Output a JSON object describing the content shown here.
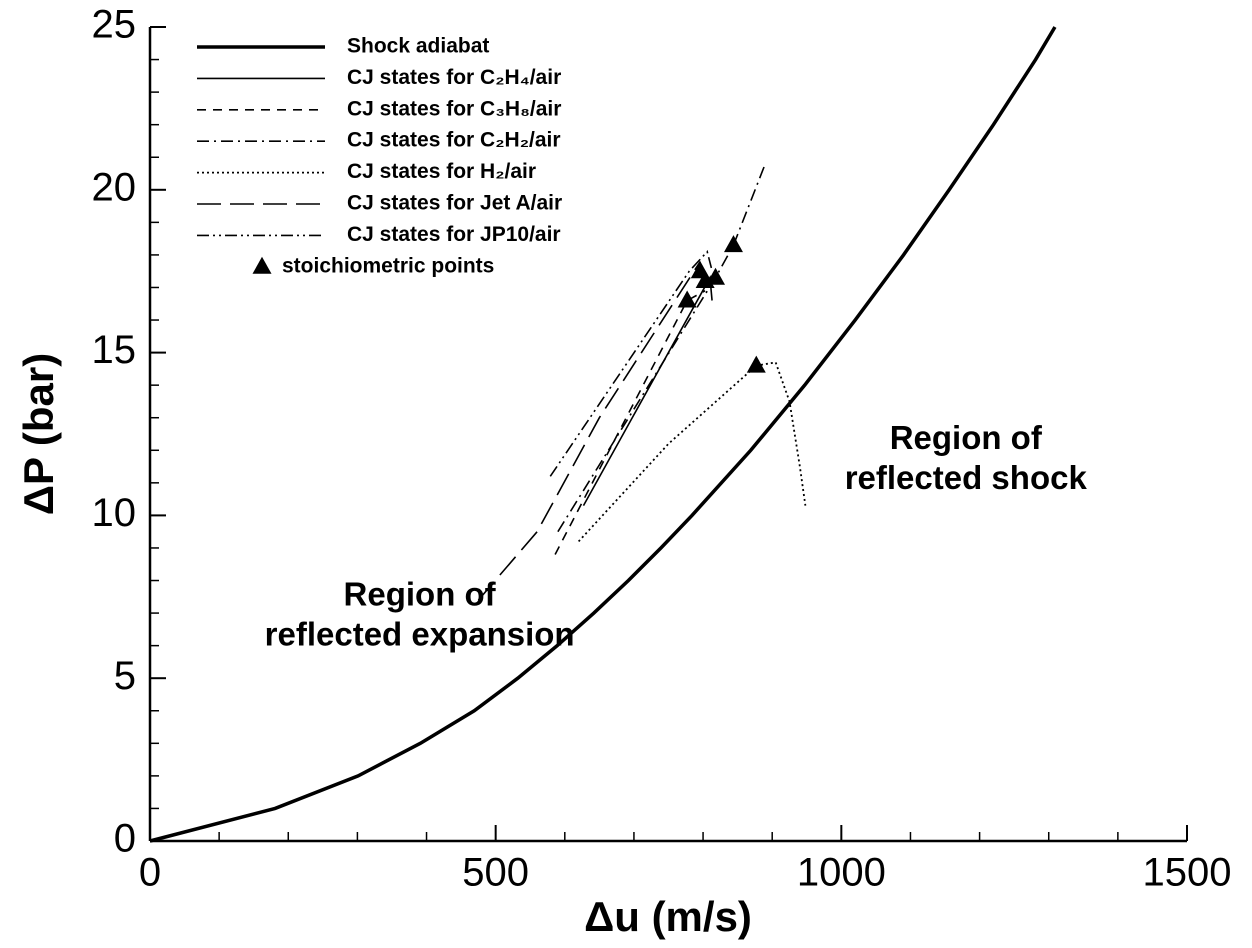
{
  "chart_data": {
    "type": "line",
    "xlabel": "Δu (m/s)",
    "ylabel": "ΔP (bar)",
    "xlim": [
      0,
      1500
    ],
    "ylim": [
      0,
      25
    ],
    "xticks": [
      0,
      500,
      1000,
      1500
    ],
    "yticks": [
      0,
      5,
      10,
      15,
      20,
      25
    ],
    "xminorticks": [
      100,
      200,
      300,
      400,
      600,
      700,
      800,
      900,
      1100,
      1200,
      1300,
      1400
    ],
    "yminorticks": [
      1,
      2,
      3,
      4,
      6,
      7,
      8,
      9,
      11,
      12,
      13,
      14,
      16,
      17,
      18,
      19,
      21,
      22,
      23,
      24
    ],
    "series": [
      {
        "name": "Shock adiabat",
        "color": "#000000",
        "style": "solid",
        "linewidth": 3.5,
        "x": [
          0,
          181,
          301,
          391,
          469,
          532,
          589,
          642,
          692,
          739,
          784,
          869,
          947,
          1020,
          1090,
          1156,
          1220,
          1281,
          1309
        ],
        "y": [
          0,
          1,
          2,
          3,
          4,
          5,
          6,
          7,
          8,
          9,
          10,
          12,
          14,
          16,
          18,
          20,
          22,
          24,
          25
        ]
      },
      {
        "name": "CJ states for C₂H₄/air",
        "color": "#000000",
        "style": "solid",
        "linewidth": 1.6,
        "x": [
          627,
          810,
          813
        ],
        "y": [
          10.3,
          17.3,
          16.6
        ]
      },
      {
        "name": "CJ states for C₃H₈/air",
        "color": "#000000",
        "style": "dashed",
        "linewidth": 1.6,
        "x": [
          586,
          777,
          803
        ],
        "y": [
          8.8,
          16.6,
          16.9
        ]
      },
      {
        "name": "CJ states for C₂H₂/air",
        "color": "#000000",
        "style": "dashdot",
        "linewidth": 1.6,
        "x": [
          590,
          818,
          844,
          890
        ],
        "y": [
          9.5,
          17.3,
          18.3,
          20.8
        ]
      },
      {
        "name": "CJ states for H₂/air",
        "color": "#000000",
        "style": "dotted",
        "linewidth": 1.8,
        "x": [
          620,
          750,
          877,
          905,
          925,
          940,
          948
        ],
        "y": [
          9.2,
          12.2,
          14.6,
          14.7,
          13.5,
          11.5,
          10.3
        ]
      },
      {
        "name": "CJ states for Jet A/air",
        "color": "#000000",
        "style": "longdash",
        "linewidth": 1.6,
        "x": [
          475,
          560,
          650,
          796
        ],
        "y": [
          7.4,
          9.5,
          13,
          17.8
        ]
      },
      {
        "name": "CJ states for JP10/air",
        "color": "#000000",
        "style": "dashdotdot",
        "linewidth": 1.6,
        "x": [
          579,
          780,
          806,
          812
        ],
        "y": [
          11.2,
          17.5,
          18.1,
          17.6
        ]
      }
    ],
    "points": {
      "name": "stoichiometric points",
      "color": "#000000",
      "x": [
        777,
        796,
        803,
        818,
        844,
        877
      ],
      "y": [
        16.6,
        17.5,
        17.2,
        17.3,
        18.3,
        14.6
      ]
    },
    "annotations": [
      {
        "lines": [
          "Region of",
          "reflected expansion"
        ],
        "x": 390,
        "y": 7.5
      },
      {
        "lines": [
          "Region of",
          "reflected shock"
        ],
        "x": 1180,
        "y": 12.3
      }
    ]
  }
}
